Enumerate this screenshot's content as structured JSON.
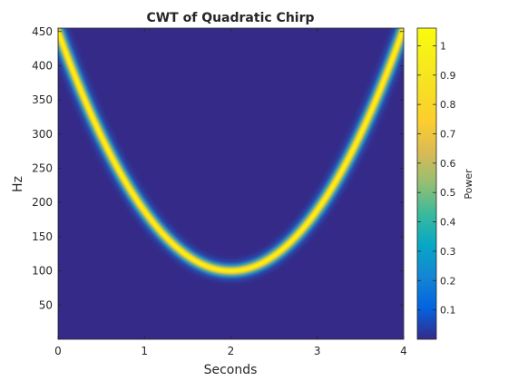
{
  "chart_data": {
    "type": "heatmap",
    "title": "CWT of Quadratic Chirp",
    "xlabel": "Seconds",
    "ylabel": "Hz",
    "xlim": [
      0,
      4
    ],
    "ylim": [
      0,
      455
    ],
    "x_ticks": [
      0,
      1,
      2,
      3,
      4
    ],
    "y_ticks": [
      50,
      100,
      150,
      200,
      250,
      300,
      350,
      400,
      450
    ],
    "colormap": "parula",
    "colorbar": {
      "label": "Power",
      "range": [
        0,
        1.06
      ],
      "ticks": [
        0.1,
        0.2,
        0.3,
        0.4,
        0.5,
        0.6,
        0.7,
        0.8,
        0.9,
        1
      ]
    },
    "ridge": {
      "description_form": "quadratic",
      "min_time_s": 2,
      "min_freq_hz": 100,
      "points": [
        {
          "t": 0.0,
          "hz": 450
        },
        {
          "t": 0.5,
          "hz": 370
        },
        {
          "t": 1.0,
          "hz": 230
        },
        {
          "t": 1.5,
          "hz": 140
        },
        {
          "t": 2.0,
          "hz": 100
        },
        {
          "t": 2.5,
          "hz": 130
        },
        {
          "t": 3.0,
          "hz": 220
        },
        {
          "t": 3.5,
          "hz": 340
        },
        {
          "t": 4.0,
          "hz": 455
        }
      ],
      "peak_power": 1.06
    }
  }
}
